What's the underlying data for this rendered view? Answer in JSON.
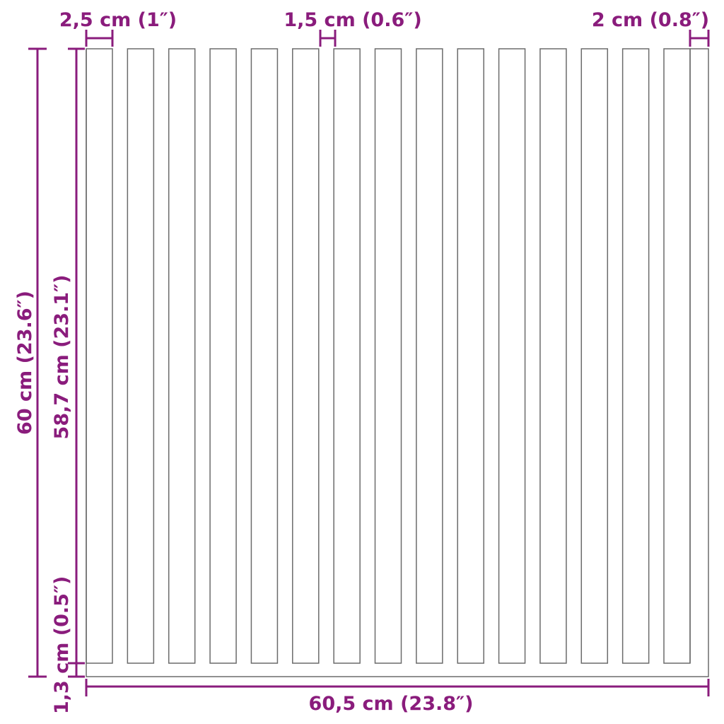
{
  "colors": {
    "dimension": "#8a1c7c",
    "outline": "#6b6b6b"
  },
  "dimensions": {
    "slat_width": "2,5 cm (1″)",
    "gap_width": "1,5 cm (0.6″)",
    "edge_width": "2 cm (0.8″)",
    "total_height": "60 cm (23.6″)",
    "slat_height": "58,7 cm (23.1″)",
    "base_height": "1,3 cm (0.5″)",
    "total_width": "60,5 cm (23.8″)"
  },
  "slat_count": 15
}
